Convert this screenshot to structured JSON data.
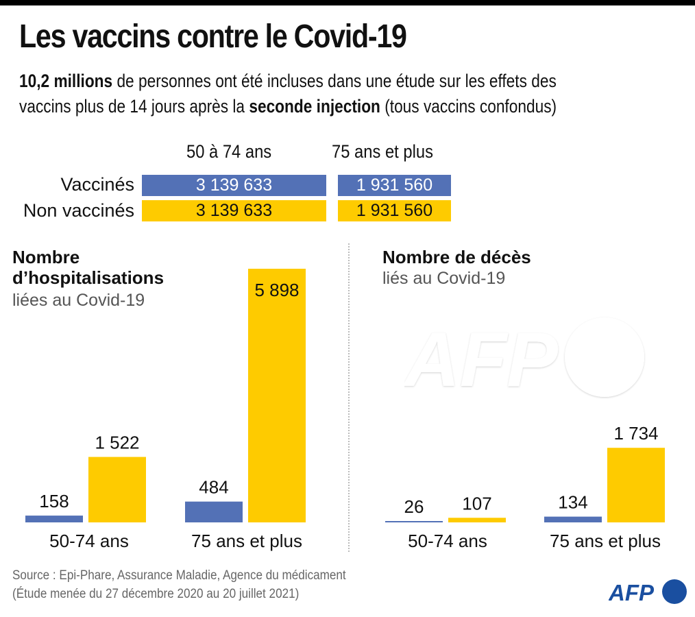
{
  "header": {
    "title": "Les vaccins contre le Covid-19",
    "subtitle_line1_bold": "10,2 millions",
    "subtitle_line1_rest": " de personnes ont été incluses dans une étude sur les effets des",
    "subtitle_line2_start": "vaccins plus de 14 jours après la ",
    "subtitle_line2_bold": "seconde injection",
    "subtitle_line2_end": " (tous vaccins confondus)"
  },
  "population": {
    "columns": [
      "50 à 74 ans",
      "75 ans et plus"
    ],
    "rows": [
      {
        "label": "Vaccinés",
        "values": [
          "3 139 633",
          "1 931 560"
        ]
      },
      {
        "label": "Non vaccinés",
        "values": [
          "3 139 633",
          "1 931 560"
        ]
      }
    ]
  },
  "colors": {
    "vaccinated": "#5371b6",
    "unvaccinated": "#fecb00",
    "afp_blue": "#1a4fa0"
  },
  "chart_data": [
    {
      "type": "bar",
      "title": "Nombre d’hospitalisations",
      "title_line1": "Nombre",
      "title_line2": "d’hospitalisations",
      "subtitle": "liées au Covid-19",
      "categories": [
        "50-74 ans",
        "75 ans et plus"
      ],
      "series": [
        {
          "name": "Vaccinés",
          "values": [
            158,
            484
          ],
          "labels": [
            "158",
            "484"
          ]
        },
        {
          "name": "Non vaccinés",
          "values": [
            1522,
            5898
          ],
          "labels": [
            "1 522",
            "5 898"
          ]
        }
      ],
      "xlabel": "",
      "ylabel": "",
      "ylim": [
        0,
        5898
      ],
      "grid": false
    },
    {
      "type": "bar",
      "title": "Nombre de décès",
      "subtitle": "liés au Covid-19",
      "categories": [
        "50-74 ans",
        "75 ans et plus"
      ],
      "series": [
        {
          "name": "Vaccinés",
          "values": [
            26,
            134
          ],
          "labels": [
            "26",
            "134"
          ]
        },
        {
          "name": "Non vaccinés",
          "values": [
            107,
            1734
          ],
          "labels": [
            "107",
            "1 734"
          ]
        }
      ],
      "xlabel": "",
      "ylabel": "",
      "ylim": [
        0,
        5898
      ],
      "grid": false
    }
  ],
  "footer": {
    "source": "Source : Epi-Phare, Assurance Maladie, Agence du médicament",
    "note": "(Étude menée du 27 décembre 2020 au 20 juillet 2021)",
    "logo_text": "AFP",
    "watermark_text": "AFP"
  }
}
